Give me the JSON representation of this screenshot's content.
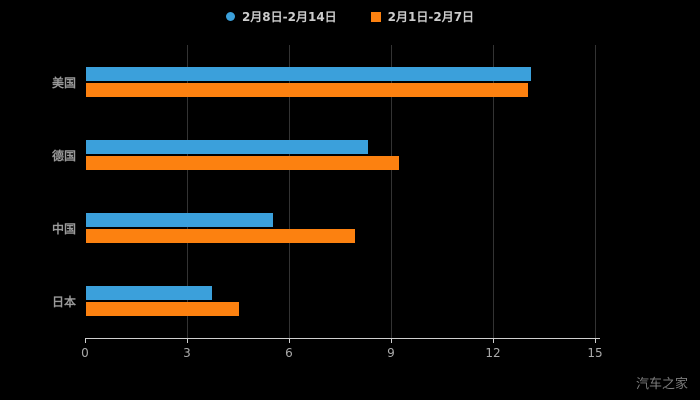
{
  "chart_data": {
    "type": "bar",
    "orientation": "horizontal",
    "title": "",
    "categories": [
      "美国",
      "德国",
      "中国",
      "日本"
    ],
    "series": [
      {
        "name": "2月8日-2月14日",
        "color": "#3BA0DB",
        "marker": "circle",
        "values": [
          13.1,
          8.3,
          5.5,
          3.7
        ]
      },
      {
        "name": "2月1日-2月7日",
        "color": "#FC8110",
        "marker": "square",
        "values": [
          13.0,
          9.2,
          7.9,
          4.5
        ]
      }
    ],
    "xlim": [
      0,
      15
    ],
    "xticks": [
      0,
      3,
      6,
      9,
      12,
      15
    ],
    "grid": true,
    "legend_position": "top"
  },
  "watermark": "汽车之家",
  "colors": {
    "background": "#000000",
    "grid": "#333333",
    "axis": "#cfcfcf",
    "tick_label": "#aaaaaa",
    "category_label": "#9a9a9a",
    "legend_label": "#cccccc"
  }
}
